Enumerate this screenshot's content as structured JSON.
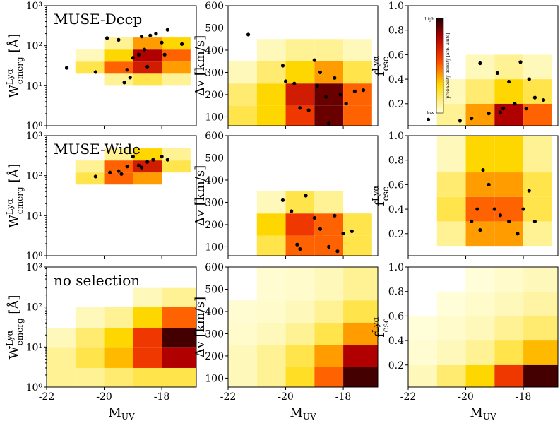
{
  "chart_data": [
    {
      "type": "heatmap-scatter",
      "annotation": "MUSE-Deep",
      "ylabel": {
        "main": "W",
        "sup": "Lyα",
        "sub": "emerg",
        "unit": " [Å]"
      },
      "xlim": [
        -22,
        -16.8
      ],
      "xticks": [
        -22,
        -20,
        -18
      ],
      "xticklabels": false,
      "ylog": true,
      "ylim": [
        1,
        1000
      ],
      "yticks": [
        {
          "value": 1,
          "label": "10⁰"
        },
        {
          "value": 10,
          "label": "10¹"
        },
        {
          "value": 100,
          "label": "10²"
        },
        {
          "value": 1000,
          "label": "10³"
        }
      ],
      "density": {
        "xedges": [
          -22,
          -21,
          -20,
          -19,
          -18,
          -17
        ],
        "yedges": [
          10,
          20,
          40,
          80,
          160
        ],
        "z": [
          [
            0,
            0,
            0.1,
            0.2,
            0.1
          ],
          [
            0,
            0.2,
            0.5,
            0.7,
            0.4
          ],
          [
            0,
            0.05,
            0.3,
            0.8,
            0.5
          ],
          [
            0,
            0,
            0.1,
            0.4,
            0.3
          ]
        ]
      },
      "points": {
        "x": [
          -21.3,
          -20.3,
          -19.9,
          -19.5,
          -19.3,
          -19.1,
          -19,
          -18.8,
          -18.6,
          -18.4,
          -18.2,
          -18,
          -17.9,
          -17.8,
          -18.5,
          -19.2,
          -17.3,
          -18.7
        ],
        "y": [
          28,
          22,
          155,
          140,
          12,
          16,
          50,
          60,
          80,
          180,
          200,
          120,
          60,
          250,
          30,
          25,
          110,
          170
        ]
      }
    },
    {
      "type": "heatmap-scatter",
      "ylabel": {
        "main": "Δv [km/s]"
      },
      "xlim": [
        -22,
        -16.8
      ],
      "xticks": [
        -22,
        -20,
        -18
      ],
      "xticklabels": false,
      "ylog": false,
      "ylim": [
        60,
        600
      ],
      "yticks": [
        100,
        200,
        300,
        400,
        500,
        600
      ],
      "density": {
        "xedges": [
          -22,
          -21,
          -20,
          -19,
          -18,
          -17
        ],
        "yedges": [
          60,
          150,
          250,
          350,
          450
        ],
        "z": [
          [
            0.2,
            0.3,
            0.6,
            0.9,
            0.5
          ],
          [
            0.15,
            0.3,
            0.7,
            0.9,
            0.5
          ],
          [
            0.05,
            0.15,
            0.3,
            0.4,
            0.2
          ],
          [
            0,
            0.05,
            0.1,
            0.1,
            0.05
          ]
        ]
      },
      "points": {
        "x": [
          -21.3,
          -20.1,
          -20,
          -19.7,
          -19.5,
          -19.2,
          -19,
          -18.8,
          -18.6,
          -18.5,
          -18.3,
          -18.1,
          -17.9,
          -17.6,
          -17.3,
          -18.9
        ],
        "y": [
          470,
          330,
          260,
          250,
          140,
          130,
          355,
          300,
          190,
          70,
          275,
          200,
          160,
          215,
          220,
          240
        ]
      }
    },
    {
      "type": "heatmap-scatter",
      "ylabel": {
        "main": "f",
        "sup": "Lyα",
        "sub": "esc"
      },
      "xlim": [
        -22,
        -16.8
      ],
      "xticks": [
        -22,
        -20,
        -18
      ],
      "xticklabels": false,
      "ylog": false,
      "ylim": [
        0.02,
        1
      ],
      "yticks": [
        0.2,
        0.4,
        0.6,
        0.8,
        {
          "value": 1,
          "label": "1.0"
        }
      ],
      "colorbar": {
        "high": "high",
        "low": "low",
        "label": "probability density [arb. units]"
      },
      "density": {
        "xedges": [
          -22,
          -21,
          -20,
          -19,
          -18,
          -17
        ],
        "yedges": [
          0.02,
          0.2,
          0.4,
          0.6
        ],
        "z": [
          [
            0,
            0.1,
            0.4,
            0.8,
            0.5
          ],
          [
            0,
            0.05,
            0.15,
            0.3,
            0.2
          ],
          [
            0,
            0,
            0.05,
            0.1,
            0.05
          ]
        ]
      },
      "points": {
        "x": [
          -21.3,
          -20.2,
          -19.8,
          -19.5,
          -19.2,
          -18.9,
          -18.7,
          -18.5,
          -18.3,
          -18.1,
          -17.9,
          -17.8,
          -17.6,
          -17.3,
          -18.8
        ],
        "y": [
          0.07,
          0.06,
          0.08,
          0.53,
          0.12,
          0.45,
          0.16,
          0.38,
          0.2,
          0.54,
          0.16,
          0.4,
          0.25,
          0.23,
          0.13
        ]
      }
    },
    {
      "type": "heatmap-scatter",
      "annotation": "MUSE-Wide",
      "ylabel": {
        "main": "W",
        "sup": "Lyα",
        "sub": "emerg",
        "unit": " [Å]"
      },
      "xlim": [
        -22,
        -16.8
      ],
      "xticks": [
        -22,
        -20,
        -18
      ],
      "xticklabels": false,
      "ylog": true,
      "ylim": [
        1,
        1000
      ],
      "yticks": [
        {
          "value": 1,
          "label": "10⁰"
        },
        {
          "value": 10,
          "label": "10¹"
        },
        {
          "value": 100,
          "label": "10²"
        },
        {
          "value": 1000,
          "label": "10³"
        }
      ],
      "density": {
        "xedges": [
          -22,
          -21,
          -20,
          -19,
          -18,
          -17
        ],
        "yedges": [
          60,
          120,
          240,
          480
        ],
        "z": [
          [
            0,
            0.2,
            0.5,
            0.4,
            0
          ],
          [
            0,
            0.1,
            0.5,
            0.7,
            0.2
          ],
          [
            0,
            0,
            0.1,
            0.3,
            0.1
          ]
        ]
      },
      "points": {
        "x": [
          -20.3,
          -19.8,
          -19.5,
          -19.2,
          -19,
          -18.8,
          -18.5,
          -18.3,
          -18,
          -17.8,
          -18.7,
          -19.4
        ],
        "y": [
          95,
          120,
          130,
          170,
          300,
          180,
          220,
          250,
          300,
          250,
          160,
          110
        ]
      }
    },
    {
      "type": "heatmap-scatter",
      "ylabel": {
        "main": "Δv [km/s]"
      },
      "xlim": [
        -22,
        -16.8
      ],
      "xticks": [
        -22,
        -20,
        -18
      ],
      "xticklabels": false,
      "ylog": false,
      "ylim": [
        60,
        600
      ],
      "yticks": [
        100,
        200,
        300,
        400,
        500,
        600
      ],
      "density": {
        "xedges": [
          -22,
          -21,
          -20,
          -19,
          -18,
          -17
        ],
        "yedges": [
          60,
          150,
          250,
          350
        ],
        "z": [
          [
            0,
            0.2,
            0.5,
            0.5,
            0.2
          ],
          [
            0,
            0.3,
            0.6,
            0.5,
            0.2
          ],
          [
            0,
            0.05,
            0.2,
            0.1,
            0
          ]
        ]
      },
      "points": {
        "x": [
          -20.1,
          -19.8,
          -19.6,
          -19.3,
          -19,
          -18.8,
          -18.5,
          -18.3,
          -18,
          -17.7,
          -18.2,
          -19.5
        ],
        "y": [
          310,
          260,
          110,
          330,
          230,
          180,
          100,
          240,
          160,
          170,
          80,
          90
        ]
      }
    },
    {
      "type": "heatmap-scatter",
      "ylabel": {
        "main": "f",
        "sup": "Lyα",
        "sub": "esc"
      },
      "xlim": [
        -22,
        -16.8
      ],
      "xticks": [
        -22,
        -20,
        -18
      ],
      "xticklabels": false,
      "ylog": false,
      "ylim": [
        0.02,
        1
      ],
      "yticks": [
        0.2,
        0.4,
        0.6,
        0.8,
        {
          "value": 1,
          "label": "1.0"
        }
      ],
      "density": {
        "xedges": [
          -22,
          -21,
          -20,
          -19,
          -18,
          -17
        ],
        "yedges": [
          0.1,
          0.3,
          0.5,
          0.7,
          1
        ],
        "z": [
          [
            0,
            0.1,
            0.4,
            0.4,
            0.1
          ],
          [
            0,
            0.2,
            0.5,
            0.5,
            0.2
          ],
          [
            0,
            0.15,
            0.4,
            0.4,
            0.2
          ],
          [
            0,
            0.05,
            0.3,
            0.3,
            0.1
          ]
        ]
      },
      "points": {
        "x": [
          -19.8,
          -19.6,
          -19.4,
          -19.2,
          -19,
          -18.8,
          -18.5,
          -18.2,
          -18,
          -17.8,
          -17.6,
          -19.5
        ],
        "y": [
          0.3,
          0.4,
          0.72,
          0.6,
          0.4,
          0.35,
          0.3,
          0.2,
          0.4,
          0.55,
          0.3,
          0.23
        ]
      }
    },
    {
      "type": "heatmap-scatter",
      "annotation": "no selection",
      "ylabel": {
        "main": "W",
        "sup": "Lyα",
        "sub": "emerg",
        "unit": " [Å]"
      },
      "xlabel": {
        "main": "M",
        "sub": "UV"
      },
      "xlim": [
        -22,
        -16.8
      ],
      "xticks": [
        -22,
        -20,
        -18
      ],
      "xticklabels": true,
      "ylog": true,
      "ylim": [
        1,
        1000
      ],
      "yticks": [
        {
          "value": 1,
          "label": "10⁰"
        },
        {
          "value": 10,
          "label": "10¹"
        },
        {
          "value": 100,
          "label": "10²"
        },
        {
          "value": 1000,
          "label": "10³"
        }
      ],
      "density": {
        "xedges": [
          -22,
          -21,
          -20,
          -19,
          -18,
          -16.8
        ],
        "yedges": [
          1,
          3,
          10,
          30,
          100,
          300
        ],
        "z": [
          [
            0.1,
            0.1,
            0.15,
            0.2,
            0.2
          ],
          [
            0.1,
            0.2,
            0.35,
            0.6,
            0.8
          ],
          [
            0.05,
            0.15,
            0.3,
            0.6,
            0.95
          ],
          [
            0,
            0.05,
            0.1,
            0.3,
            0.5
          ],
          [
            0,
            0,
            0,
            0.05,
            0.1
          ]
        ]
      }
    },
    {
      "type": "heatmap-scatter",
      "ylabel": {
        "main": "Δv [km/s]"
      },
      "xlabel": {
        "main": "M",
        "sub": "UV"
      },
      "xlim": [
        -22,
        -16.8
      ],
      "xticks": [
        -22,
        -20,
        -18
      ],
      "xticklabels": true,
      "ylog": false,
      "ylim": [
        60,
        600
      ],
      "yticks": [
        100,
        200,
        300,
        400,
        500,
        600
      ],
      "density": {
        "xedges": [
          -22,
          -21,
          -20,
          -19,
          -18,
          -16.8
        ],
        "yedges": [
          60,
          150,
          250,
          350,
          450,
          600
        ],
        "z": [
          [
            0.05,
            0.1,
            0.25,
            0.5,
            0.95
          ],
          [
            0.05,
            0.1,
            0.2,
            0.4,
            0.8
          ],
          [
            0.03,
            0.05,
            0.1,
            0.2,
            0.4
          ],
          [
            0.02,
            0.03,
            0.05,
            0.1,
            0.2
          ],
          [
            0,
            0.02,
            0.03,
            0.05,
            0.1
          ]
        ]
      }
    },
    {
      "type": "heatmap-scatter",
      "ylabel": {
        "main": "f",
        "sup": "Lyα",
        "sub": "esc"
      },
      "xlabel": {
        "main": "M",
        "sub": "UV"
      },
      "xlim": [
        -22,
        -16.8
      ],
      "xticks": [
        -22,
        -20,
        -18
      ],
      "xticklabels": true,
      "ylog": false,
      "ylim": [
        0.02,
        1
      ],
      "yticks": [
        0.2,
        0.4,
        0.6,
        0.8,
        {
          "value": 1,
          "label": "1.0"
        }
      ],
      "density": {
        "xedges": [
          -22,
          -21,
          -20,
          -19,
          -18,
          -16.8
        ],
        "yedges": [
          0.02,
          0.2,
          0.4,
          0.6,
          0.8,
          1
        ],
        "z": [
          [
            0.05,
            0.15,
            0.3,
            0.6,
            0.95
          ],
          [
            0.02,
            0.05,
            0.1,
            0.2,
            0.35
          ],
          [
            0.01,
            0.03,
            0.05,
            0.1,
            0.15
          ],
          [
            0,
            0.01,
            0.03,
            0.05,
            0.08
          ],
          [
            0,
            0,
            0.01,
            0.03,
            0.05
          ]
        ]
      }
    }
  ]
}
